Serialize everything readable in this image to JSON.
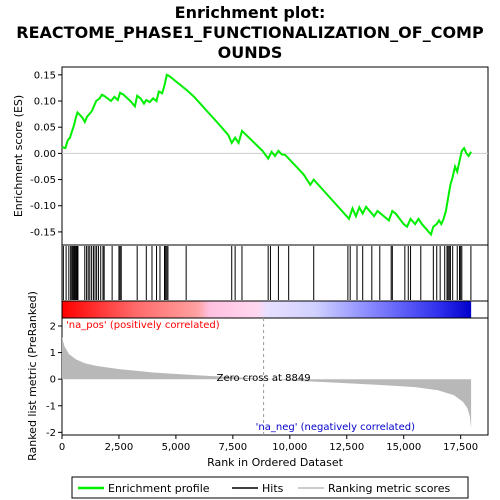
{
  "chart_data": {
    "type": "line",
    "title_lines": [
      "Enrichment plot:",
      "REACTOME_PHASE1_FUNCTIONALIZATION_OF_COMP",
      "OUNDS"
    ],
    "top_panel": {
      "ylabel": "Enrichment score (ES)",
      "ylim": [
        -0.175,
        0.165
      ],
      "yticks": [
        {
          "v": 0.15,
          "label": "0.15"
        },
        {
          "v": 0.1,
          "label": "0.10"
        },
        {
          "v": 0.05,
          "label": "0.05"
        },
        {
          "v": 0.0,
          "label": "0.00"
        },
        {
          "v": -0.05,
          "label": "-0.05"
        },
        {
          "v": -0.1,
          "label": "-0.10"
        },
        {
          "v": -0.15,
          "label": "-0.15"
        }
      ],
      "series": [
        {
          "name": "Enrichment profile",
          "color": "#00ee00",
          "points": [
            [
              0,
              0.012
            ],
            [
              150,
              0.01
            ],
            [
              250,
              0.025
            ],
            [
              350,
              0.03
            ],
            [
              420,
              0.04
            ],
            [
              500,
              0.05
            ],
            [
              560,
              0.06
            ],
            [
              620,
              0.07
            ],
            [
              680,
              0.078
            ],
            [
              750,
              0.075
            ],
            [
              900,
              0.068
            ],
            [
              1000,
              0.06
            ],
            [
              1100,
              0.07
            ],
            [
              1200,
              0.075
            ],
            [
              1300,
              0.08
            ],
            [
              1400,
              0.09
            ],
            [
              1500,
              0.1
            ],
            [
              1650,
              0.105
            ],
            [
              1750,
              0.112
            ],
            [
              1850,
              0.11
            ],
            [
              2000,
              0.105
            ],
            [
              2150,
              0.1
            ],
            [
              2300,
              0.108
            ],
            [
              2450,
              0.102
            ],
            [
              2550,
              0.116
            ],
            [
              2700,
              0.112
            ],
            [
              3000,
              0.1
            ],
            [
              3200,
              0.09
            ],
            [
              3300,
              0.11
            ],
            [
              3450,
              0.105
            ],
            [
              3600,
              0.095
            ],
            [
              3700,
              0.102
            ],
            [
              3850,
              0.098
            ],
            [
              4000,
              0.105
            ],
            [
              4150,
              0.1
            ],
            [
              4250,
              0.118
            ],
            [
              4400,
              0.115
            ],
            [
              4500,
              0.13
            ],
            [
              4600,
              0.15
            ],
            [
              4700,
              0.148
            ],
            [
              5500,
              0.12
            ],
            [
              5800,
              0.108
            ],
            [
              6800,
              0.06
            ],
            [
              7000,
              0.05
            ],
            [
              7300,
              0.035
            ],
            [
              7450,
              0.02
            ],
            [
              7600,
              0.03
            ],
            [
              7750,
              0.02
            ],
            [
              7900,
              0.043
            ],
            [
              8800,
              0.005
            ],
            [
              9050,
              -0.01
            ],
            [
              9200,
              0.003
            ],
            [
              9350,
              -0.005
            ],
            [
              9500,
              0.005
            ],
            [
              9650,
              -0.002
            ],
            [
              9800,
              -0.003
            ],
            [
              10600,
              -0.04
            ],
            [
              10900,
              -0.06
            ],
            [
              11050,
              -0.05
            ],
            [
              12600,
              -0.125
            ],
            [
              12750,
              -0.105
            ],
            [
              12900,
              -0.12
            ],
            [
              13050,
              -0.103
            ],
            [
              13200,
              -0.115
            ],
            [
              13350,
              -0.102
            ],
            [
              13700,
              -0.12
            ],
            [
              13850,
              -0.11
            ],
            [
              14350,
              -0.128
            ],
            [
              14500,
              -0.11
            ],
            [
              14650,
              -0.115
            ],
            [
              15000,
              -0.135
            ],
            [
              15150,
              -0.14
            ],
            [
              15300,
              -0.125
            ],
            [
              15500,
              -0.135
            ],
            [
              15650,
              -0.125
            ],
            [
              15800,
              -0.135
            ],
            [
              16000,
              -0.145
            ],
            [
              16200,
              -0.155
            ],
            [
              16300,
              -0.14
            ],
            [
              16450,
              -0.135
            ],
            [
              16550,
              -0.128
            ],
            [
              16650,
              -0.135
            ],
            [
              16750,
              -0.125
            ],
            [
              16850,
              -0.11
            ],
            [
              16950,
              -0.085
            ],
            [
              17050,
              -0.06
            ],
            [
              17150,
              -0.045
            ],
            [
              17250,
              -0.025
            ],
            [
              17350,
              -0.035
            ],
            [
              17450,
              -0.015
            ],
            [
              17550,
              0.005
            ],
            [
              17650,
              0.01
            ],
            [
              17750,
              0.0
            ],
            [
              17850,
              -0.005
            ],
            [
              17960,
              0.003
            ]
          ]
        }
      ]
    },
    "hits": [
      60,
      180,
      300,
      380,
      430,
      470,
      510,
      545,
      580,
      620,
      660,
      700,
      1000,
      1080,
      1150,
      1220,
      1300,
      1380,
      1450,
      1520,
      1600,
      1700,
      1800,
      1850,
      2200,
      2500,
      2550,
      2600,
      3300,
      3700,
      3950,
      4150,
      4300,
      4500,
      4550,
      4600,
      4650,
      5450,
      7450,
      7600,
      7900,
      9050,
      9150,
      9500,
      9950,
      11050,
      12550,
      12650,
      12950,
      13200,
      13600,
      13950,
      14450,
      14500,
      15050,
      15200,
      15300,
      15750,
      16300,
      16450,
      16600,
      16800,
      16900,
      16950,
      17000,
      17050,
      17150,
      17350,
      17450,
      17500,
      17550,
      17950
    ],
    "bottom_panel": {
      "ylabel": "Ranked list metric (PreRanked)",
      "ylim": [
        -2.1,
        2.3
      ],
      "yticks": [
        {
          "v": 2,
          "label": "2"
        },
        {
          "v": 1,
          "label": "1"
        },
        {
          "v": 0,
          "label": "0"
        },
        {
          "v": -1,
          "label": "-1"
        },
        {
          "v": -2,
          "label": "-2"
        }
      ],
      "metric_curve": [
        [
          0,
          1.6
        ],
        [
          100,
          1.25
        ],
        [
          300,
          0.95
        ],
        [
          600,
          0.75
        ],
        [
          1000,
          0.6
        ],
        [
          1500,
          0.5
        ],
        [
          2500,
          0.38
        ],
        [
          4000,
          0.25
        ],
        [
          6000,
          0.14
        ],
        [
          8000,
          0.05
        ],
        [
          8849,
          0.0
        ],
        [
          10000,
          -0.05
        ],
        [
          12000,
          -0.13
        ],
        [
          14000,
          -0.22
        ],
        [
          15500,
          -0.3
        ],
        [
          16500,
          -0.42
        ],
        [
          17200,
          -0.6
        ],
        [
          17600,
          -0.85
        ],
        [
          17800,
          -1.1
        ],
        [
          17900,
          -1.4
        ],
        [
          17960,
          -1.85
        ]
      ],
      "zero_cross_label": "Zero cross at 8849",
      "zero_cross": 8849,
      "pos_label": "'na_pos' (positively correlated)",
      "neg_label": "'na_neg' (negatively correlated)"
    },
    "x": {
      "label": "Rank in Ordered Dataset",
      "xlim": [
        0,
        18700
      ],
      "ticks": [
        {
          "v": 0,
          "label": "0"
        },
        {
          "v": 2500,
          "label": "2,500"
        },
        {
          "v": 5000,
          "label": "5,000"
        },
        {
          "v": 7500,
          "label": "7,500"
        },
        {
          "v": 10000,
          "label": "10,000"
        },
        {
          "v": 12500,
          "label": "12,500"
        },
        {
          "v": 15000,
          "label": "15,000"
        },
        {
          "v": 17500,
          "label": "17,500"
        }
      ],
      "max_rank": 17960
    },
    "legend": [
      {
        "label": "Enrichment profile",
        "color": "#00ee00",
        "kind": "line"
      },
      {
        "label": "Hits",
        "color": "#000000",
        "kind": "line"
      },
      {
        "label": "Ranking metric scores",
        "color": "#bbbbbb",
        "kind": "line"
      }
    ],
    "colors": {
      "profile": "#00ee00",
      "hits": "#000000",
      "metric_fill": "#b8b8b8",
      "pos_text": "#ff0000",
      "neg_text": "#0000cc",
      "zero_line": "#999999"
    }
  }
}
